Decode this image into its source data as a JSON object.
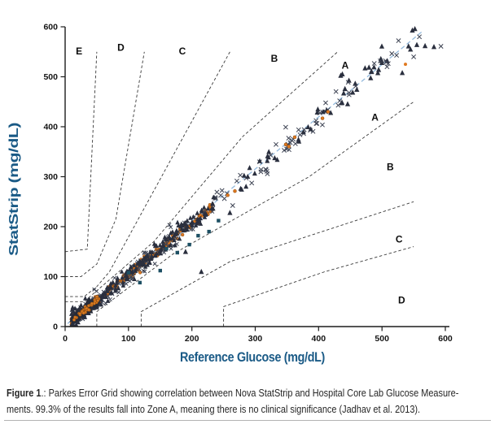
{
  "figure": {
    "caption": {
      "label": "Figure 1",
      "line1": ".: Parkes Error Grid showing correlation between Nova StatStrip and Hospital Core Lab Glucose Measure-",
      "line2": "ments. 99.3% of the results fall into Zone A, meaning there is no clinical significance (Jadhav et al. 2013)."
    }
  },
  "colors": {
    "background": "#ffffff",
    "axis_line": "#1c1c1c",
    "tick_text": "#141414",
    "axis_label_blue": "#1a5a86",
    "zone_line": "#3a3a3a",
    "zone_label": "#0d0d0d",
    "regression_blue": "#93b9dc",
    "marker_orange": "#e0791f",
    "marker_orange_edge": "#8a4a10",
    "marker_triangle": "#2a2f3e",
    "marker_x": "#3c4252",
    "marker_diamond": "#c2cede",
    "marker_diamond_edge": "#93a7bd",
    "marker_square": "#1d4f63",
    "caption_text": "#262626",
    "divider": "#b3b3b3"
  },
  "chart_data": {
    "type": "scatter",
    "xlabel": "Reference Glucose (mg/dL)",
    "ylabel": "StatStrip (mg/dL)",
    "xlim": [
      0,
      600
    ],
    "ylim": [
      0,
      600
    ],
    "xticks": [
      0,
      100,
      200,
      300,
      400,
      500,
      600
    ],
    "yticks": [
      0,
      100,
      200,
      300,
      400,
      500,
      600
    ],
    "grid": false,
    "legend": "none",
    "zone_labels": [
      {
        "text": "E",
        "x": 22,
        "y": 545
      },
      {
        "text": "D",
        "x": 88,
        "y": 552
      },
      {
        "text": "C",
        "x": 185,
        "y": 545
      },
      {
        "text": "B",
        "x": 330,
        "y": 530
      },
      {
        "text": "A",
        "x": 442,
        "y": 516
      },
      {
        "text": "A",
        "x": 489,
        "y": 412
      },
      {
        "text": "B",
        "x": 513,
        "y": 313
      },
      {
        "text": "C",
        "x": 527,
        "y": 168
      },
      {
        "text": "D",
        "x": 531,
        "y": 46
      }
    ],
    "zone_boundaries": [
      {
        "name": "upper-A-B",
        "points": [
          [
            0,
            50
          ],
          [
            30,
            50
          ],
          [
            140,
            170
          ],
          [
            280,
            380
          ],
          [
            430,
            550
          ]
        ]
      },
      {
        "name": "upper-B-C",
        "points": [
          [
            0,
            60
          ],
          [
            30,
            60
          ],
          [
            50,
            80
          ],
          [
            70,
            110
          ],
          [
            260,
            550
          ]
        ]
      },
      {
        "name": "upper-C-D",
        "points": [
          [
            0,
            100
          ],
          [
            25,
            100
          ],
          [
            50,
            125
          ],
          [
            80,
            215
          ],
          [
            125,
            550
          ]
        ]
      },
      {
        "name": "upper-D-E",
        "points": [
          [
            0,
            150
          ],
          [
            35,
            155
          ],
          [
            50,
            550
          ]
        ]
      },
      {
        "name": "lower-A-B",
        "points": [
          [
            50,
            0
          ],
          [
            50,
            30
          ],
          [
            170,
            145
          ],
          [
            385,
            300
          ],
          [
            550,
            450
          ]
        ]
      },
      {
        "name": "lower-B-C",
        "points": [
          [
            120,
            0
          ],
          [
            120,
            30
          ],
          [
            260,
            130
          ],
          [
            550,
            250
          ]
        ]
      },
      {
        "name": "lower-C-D",
        "points": [
          [
            250,
            0
          ],
          [
            250,
            40
          ],
          [
            410,
            110
          ],
          [
            550,
            160
          ]
        ]
      }
    ],
    "regression_line": {
      "x1": 4,
      "y1": 6,
      "x2": 563,
      "y2": 590,
      "style": "dashed"
    },
    "seed": 7,
    "intercept": 2,
    "generated_series": [
      {
        "name": "dense-diamond",
        "marker": "diamond",
        "color": "#c2cede",
        "edge": "#93a7bd",
        "count": 130,
        "x_min": 12,
        "x_max": 232,
        "x_pow": 1.4,
        "slope": 1.0,
        "sigma": 3.2,
        "size": 2.0
      },
      {
        "name": "dense-orange",
        "marker": "circle",
        "color": "#e0791f",
        "edge": "#8a4a10",
        "count": 250,
        "x_min": 10,
        "x_max": 235,
        "x_pow": 1.5,
        "slope": 1.02,
        "sigma": 4.5,
        "size": 1.9
      },
      {
        "name": "dense-x",
        "marker": "x",
        "color": "#3c4252",
        "edge": "",
        "count": 140,
        "x_min": 12,
        "x_max": 240,
        "x_pow": 1.4,
        "slope": 1.01,
        "sigma": 10,
        "size": 2.2
      },
      {
        "name": "dense-triangle",
        "marker": "triangle",
        "color": "#2a2f3e",
        "edge": "",
        "count": 240,
        "x_min": 10,
        "x_max": 238,
        "x_pow": 1.5,
        "slope": 1.03,
        "sigma": 8.5,
        "size": 2.5
      },
      {
        "name": "origin-triangle",
        "marker": "triangle",
        "color": "#262b38",
        "edge": "",
        "count": 70,
        "x_min": 12,
        "x_max": 52,
        "x_pow": 1.0,
        "slope": 1.0,
        "sigma": 5,
        "size": 2.3
      },
      {
        "name": "origin-orange",
        "marker": "circle",
        "color": "#d87a20",
        "edge": "#8a4a10",
        "count": 40,
        "x_min": 14,
        "x_max": 55,
        "x_pow": 1.0,
        "slope": 1.0,
        "sigma": 3.5,
        "size": 1.8
      },
      {
        "name": "mid-x",
        "marker": "x",
        "color": "#3c4252",
        "edge": "",
        "count": 48,
        "x_min": 238,
        "x_max": 432,
        "x_pow": 1.0,
        "slope": 1.035,
        "sigma": 12,
        "size": 2.6
      },
      {
        "name": "mid-triangle",
        "marker": "triangle",
        "color": "#2a2f3e",
        "edge": "",
        "count": 24,
        "x_min": 240,
        "x_max": 430,
        "x_pow": 1.0,
        "slope": 1.04,
        "sigma": 12,
        "size": 2.7
      },
      {
        "name": "mid-orange",
        "marker": "circle",
        "color": "#e0791f",
        "edge": "#8a4a10",
        "count": 7,
        "x_min": 245,
        "x_max": 420,
        "x_pow": 1.0,
        "slope": 1.03,
        "sigma": 9,
        "size": 2.0
      },
      {
        "name": "upper-triangle",
        "marker": "triangle",
        "color": "#2a2f3e",
        "edge": "",
        "count": 26,
        "x_min": 430,
        "x_max": 560,
        "x_pow": 1.2,
        "slope": 1.05,
        "sigma": 13,
        "size": 2.8
      },
      {
        "name": "upper-x",
        "marker": "x",
        "color": "#3c4252",
        "edge": "",
        "count": 13,
        "x_min": 432,
        "x_max": 556,
        "x_pow": 1.2,
        "slope": 1.05,
        "sigma": 12,
        "size": 2.6
      }
    ],
    "explicit_points": {
      "squares": {
        "marker": "square",
        "color": "#1d4f63",
        "size": 2.2,
        "points": [
          [
            100,
            108
          ],
          [
            118,
            88
          ],
          [
            150,
            112
          ],
          [
            160,
            156
          ],
          [
            177,
            148
          ],
          [
            196,
            164
          ],
          [
            210,
            182
          ],
          [
            227,
            190
          ],
          [
            242,
            212
          ]
        ]
      },
      "triangles": {
        "marker": "triangle",
        "color": "#2a2f3e",
        "size": 2.8,
        "points": [
          [
            548,
            593
          ],
          [
            555,
            564
          ],
          [
            568,
            562
          ],
          [
            582,
            560
          ],
          [
            532,
            508
          ],
          [
            545,
            555
          ],
          [
            215,
            110
          ],
          [
            190,
            150
          ],
          [
            260,
            228
          ]
        ]
      },
      "x_marks": {
        "marker": "x",
        "color": "#3c4252",
        "size": 2.6,
        "points": [
          [
            559,
            580
          ],
          [
            593,
            561
          ],
          [
            523,
            543
          ],
          [
            550,
            540
          ]
        ]
      },
      "orange": {
        "marker": "circle",
        "color": "#e0791f",
        "size": 2.0,
        "points": [
          [
            537,
            525
          ]
        ]
      }
    }
  }
}
